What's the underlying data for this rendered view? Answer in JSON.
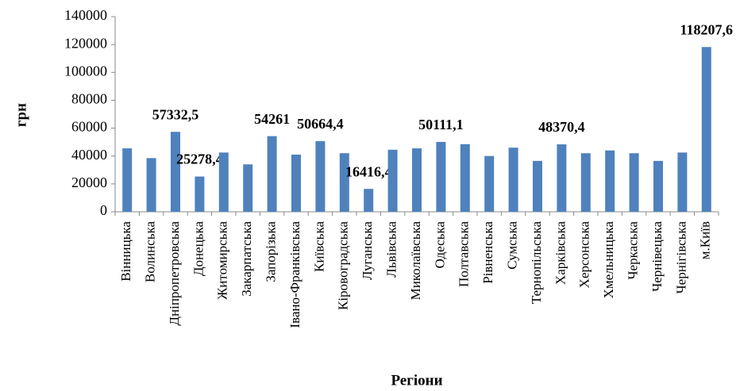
{
  "chart_data": {
    "type": "bar",
    "y_axis_label": "грн",
    "x_axis_label": "Регіони",
    "categories": [
      "Вінницька",
      "Волинська",
      "Дніпропетровська",
      "Донецька",
      "Житомирська",
      "Закарпатська",
      "Запорізька",
      "Івано-Франківська",
      "Київська",
      "Кіровоградська",
      "Луганська",
      "Львівська",
      "Миколаївська",
      "Одеська",
      "Полтавська",
      "Рівненська",
      "Сумська",
      "Тернопільська",
      "Харківська",
      "Херсонська",
      "Хмельницька",
      "Черкаська",
      "Чернівецька",
      "Чернігівська",
      "м.Київ"
    ],
    "values": [
      45500,
      38500,
      57332.5,
      25278.4,
      42500,
      34000,
      54261,
      41000,
      50664.4,
      42000,
      16416.4,
      44500,
      45500,
      50111.1,
      48500,
      40000,
      46000,
      36500,
      48370.4,
      42000,
      44000,
      42000,
      36500,
      42500,
      118207.6
    ],
    "value_labels": [
      null,
      null,
      "57332,5",
      "25278,4",
      null,
      null,
      "54261",
      null,
      "50664,4",
      null,
      "16416,4",
      null,
      null,
      "50111,1",
      null,
      null,
      null,
      null,
      "48370,4",
      null,
      null,
      null,
      null,
      null,
      "118207,6"
    ],
    "color": "#4f81bd",
    "ylim": [
      0,
      140000
    ],
    "yticks": [
      0,
      20000,
      40000,
      60000,
      80000,
      100000,
      120000,
      140000
    ],
    "grid": false
  }
}
